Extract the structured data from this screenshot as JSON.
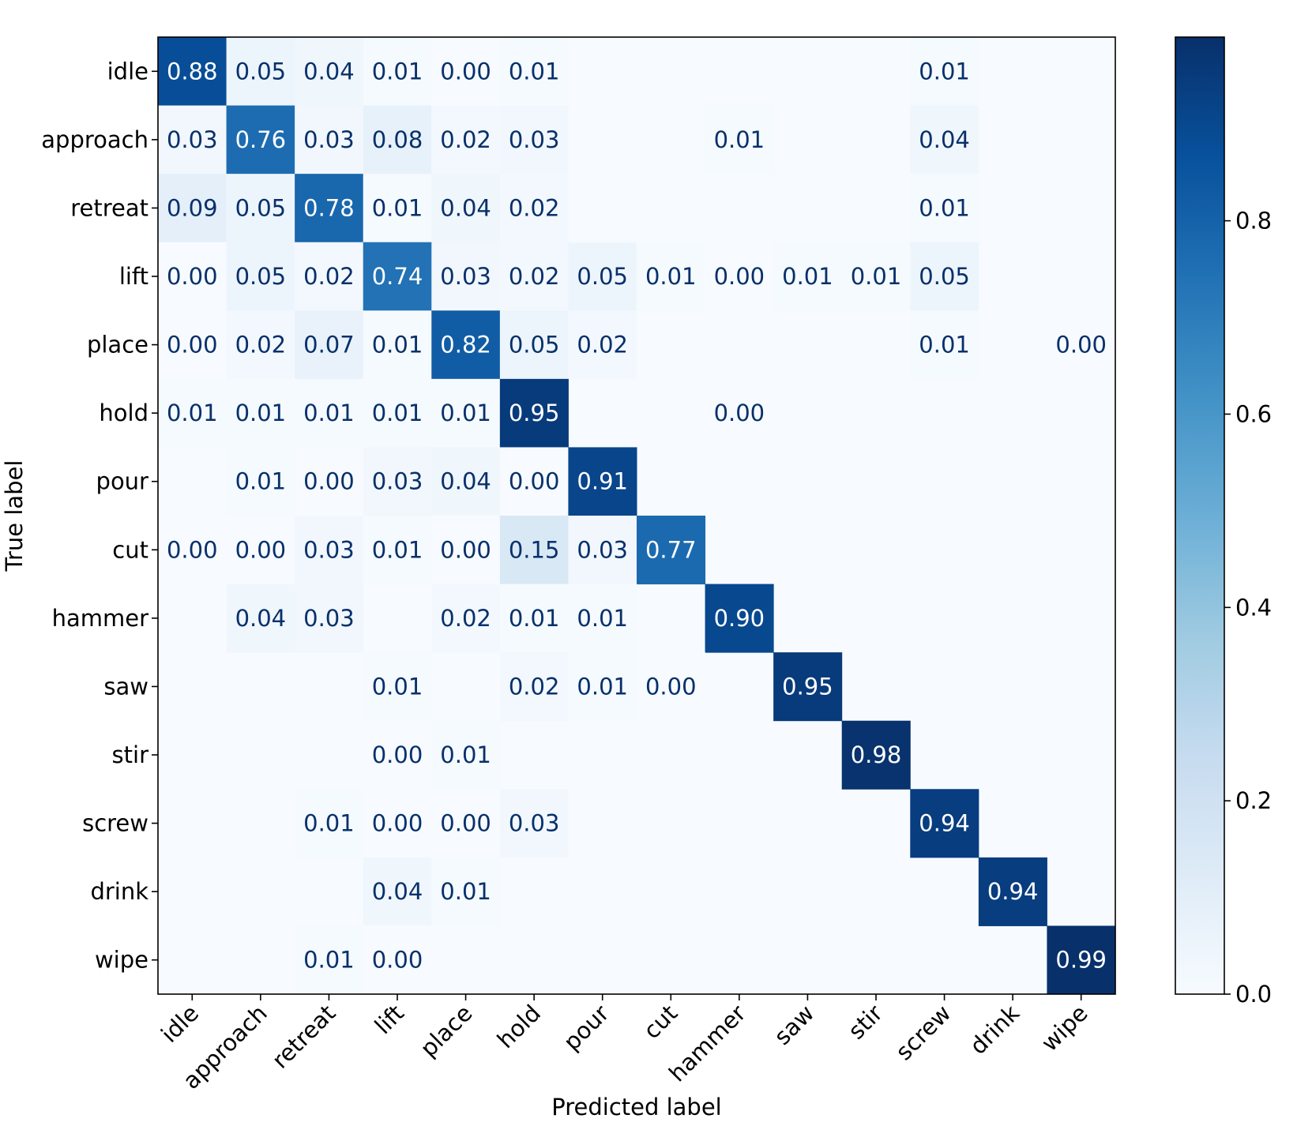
{
  "chart_data": {
    "type": "heatmap",
    "title": "",
    "xlabel": "Predicted label",
    "ylabel": "True label",
    "x_categories": [
      "idle",
      "approach",
      "retreat",
      "lift",
      "place",
      "hold",
      "pour",
      "cut",
      "hammer",
      "saw",
      "stir",
      "screw",
      "drink",
      "wipe"
    ],
    "y_categories": [
      "idle",
      "approach",
      "retreat",
      "lift",
      "place",
      "hold",
      "pour",
      "cut",
      "hammer",
      "saw",
      "stir",
      "screw",
      "drink",
      "wipe"
    ],
    "values": [
      [
        0.88,
        0.05,
        0.04,
        0.01,
        0.0,
        0.01,
        null,
        null,
        null,
        null,
        null,
        0.01,
        null,
        null
      ],
      [
        0.03,
        0.76,
        0.03,
        0.08,
        0.02,
        0.03,
        null,
        null,
        0.01,
        null,
        null,
        0.04,
        null,
        null
      ],
      [
        0.09,
        0.05,
        0.78,
        0.01,
        0.04,
        0.02,
        null,
        null,
        null,
        null,
        null,
        0.01,
        null,
        null
      ],
      [
        0.0,
        0.05,
        0.02,
        0.74,
        0.03,
        0.02,
        0.05,
        0.01,
        0.0,
        0.01,
        0.01,
        0.05,
        null,
        null
      ],
      [
        0.0,
        0.02,
        0.07,
        0.01,
        0.82,
        0.05,
        0.02,
        null,
        null,
        null,
        null,
        0.01,
        null,
        0.0
      ],
      [
        0.01,
        0.01,
        0.01,
        0.01,
        0.01,
        0.95,
        null,
        null,
        0.0,
        null,
        null,
        null,
        null,
        null
      ],
      [
        null,
        0.01,
        0.0,
        0.03,
        0.04,
        0.0,
        0.91,
        null,
        null,
        null,
        null,
        null,
        null,
        null
      ],
      [
        0.0,
        0.0,
        0.03,
        0.01,
        0.0,
        0.15,
        0.03,
        0.77,
        null,
        null,
        null,
        null,
        null,
        null
      ],
      [
        null,
        0.04,
        0.03,
        null,
        0.02,
        0.01,
        0.01,
        null,
        0.9,
        null,
        null,
        null,
        null,
        null
      ],
      [
        null,
        null,
        null,
        0.01,
        null,
        0.02,
        0.01,
        0.0,
        null,
        0.95,
        null,
        null,
        null,
        null
      ],
      [
        null,
        null,
        null,
        0.0,
        0.01,
        null,
        null,
        null,
        null,
        null,
        0.98,
        null,
        null,
        null
      ],
      [
        null,
        null,
        0.01,
        0.0,
        0.0,
        0.03,
        null,
        null,
        null,
        null,
        null,
        0.94,
        null,
        null
      ],
      [
        null,
        null,
        null,
        0.04,
        0.01,
        null,
        null,
        null,
        null,
        null,
        null,
        null,
        0.94,
        null
      ],
      [
        null,
        null,
        0.01,
        0.0,
        null,
        null,
        null,
        null,
        null,
        null,
        null,
        null,
        null,
        0.99
      ]
    ],
    "colorbar": {
      "colormap": "Blues",
      "range": [
        0.0,
        0.99
      ],
      "ticks": [
        0.0,
        0.2,
        0.4,
        0.6,
        0.8
      ],
      "tick_labels": [
        "0.0",
        "0.2",
        "0.4",
        "0.6",
        "0.8"
      ]
    },
    "grid": false,
    "legend": "colorbar-right"
  }
}
